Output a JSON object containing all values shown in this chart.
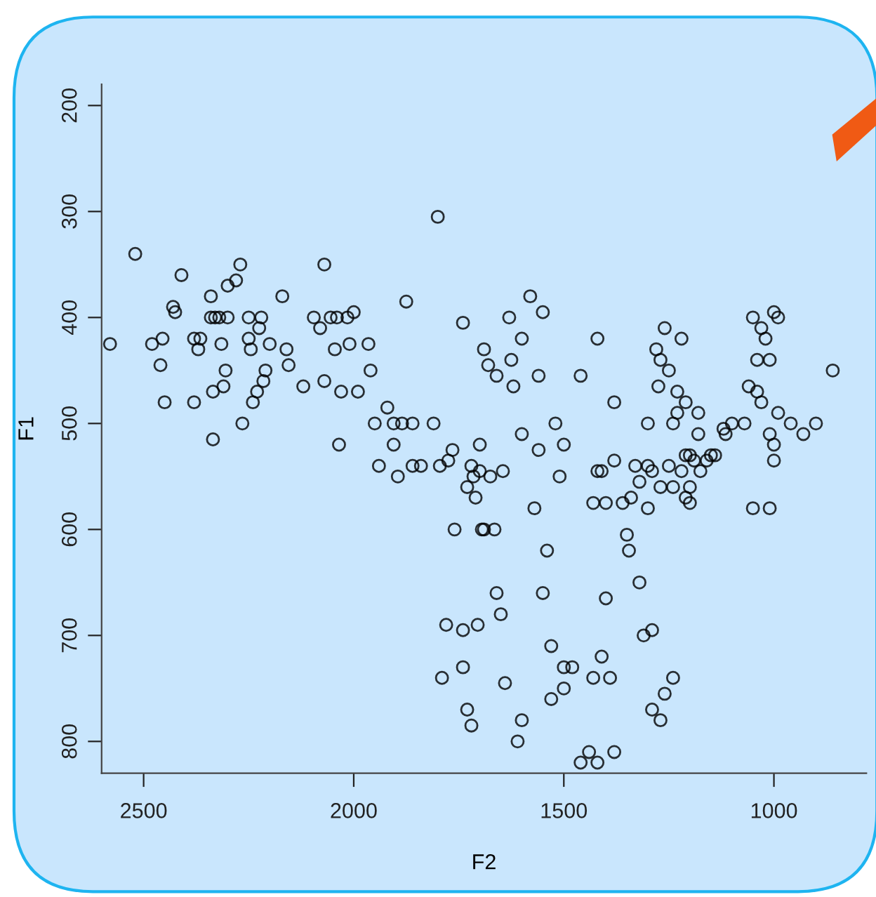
{
  "chart_data": {
    "type": "scatter",
    "xlabel": "F2",
    "ylabel": "F1",
    "xlim": [
      2600,
      780
    ],
    "ylim": [
      830,
      180
    ],
    "xticks": [
      2500,
      2000,
      1500,
      1000
    ],
    "yticks": [
      200,
      300,
      400,
      500,
      600,
      700,
      800
    ],
    "grid": false,
    "marker": "circle",
    "color": "#000000",
    "x": [
      2580,
      2520,
      2480,
      2460,
      2455,
      2450,
      2430,
      2425,
      2410,
      2380,
      2380,
      2370,
      2365,
      2340,
      2340,
      2335,
      2330,
      2335,
      2320,
      2315,
      2310,
      2300,
      2300,
      2305,
      2280,
      2270,
      2265,
      2250,
      2250,
      2245,
      2240,
      2230,
      2220,
      2225,
      2215,
      2210,
      2200,
      2170,
      2160,
      2155,
      2120,
      2095,
      2080,
      2070,
      2070,
      2055,
      2045,
      2040,
      2030,
      2035,
      2015,
      2010,
      2000,
      1990,
      1965,
      1960,
      1950,
      1940,
      1920,
      1905,
      1905,
      1895,
      1885,
      1875,
      1860,
      1840,
      1810,
      1800,
      1795,
      1790,
      1775,
      1760,
      1765,
      1740,
      1730,
      1720,
      1715,
      1710,
      1705,
      1700,
      1695,
      1690,
      1680,
      1675,
      1665,
      1660,
      1660,
      1650,
      1645,
      1640,
      1630,
      1625,
      1620,
      1740,
      1730,
      1720,
      1600,
      1610,
      1600,
      1580,
      1560,
      1550,
      1600,
      1560,
      1570,
      1540,
      1510,
      1520,
      1500,
      1550,
      1530,
      1500,
      1500,
      1460,
      1420,
      1420,
      1410,
      1400,
      1380,
      1360,
      1430,
      1410,
      1400,
      1390,
      1380,
      1350,
      1345,
      1330,
      1320,
      1300,
      1310,
      1290,
      1280,
      1275,
      1270,
      1260,
      1250,
      1230,
      1220,
      1300,
      1290,
      1270,
      1260,
      1240,
      1440,
      1460,
      1420,
      1380,
      1320,
      1300,
      1290,
      1270,
      1250,
      1240,
      1220,
      1210,
      1200,
      1240,
      1230,
      1210,
      1180,
      1175,
      1160,
      1150,
      1120,
      1115,
      1210,
      1200,
      1050,
      1040,
      1030,
      1020,
      1000,
      990,
      1010,
      1040,
      1060,
      1070,
      1030,
      990,
      1010,
      1000,
      1000,
      1050,
      1010,
      960,
      930,
      900,
      860,
      1100,
      1140,
      1180,
      1200,
      1190,
      1430,
      1340,
      1480,
      1530,
      1690,
      1700,
      1780,
      1860,
      1740
    ],
    "values": [
      425,
      340,
      425,
      445,
      420,
      480,
      390,
      395,
      360,
      420,
      480,
      430,
      420,
      380,
      400,
      470,
      400,
      515,
      400,
      425,
      465,
      400,
      370,
      450,
      365,
      350,
      500,
      400,
      420,
      430,
      480,
      470,
      400,
      410,
      460,
      450,
      425,
      380,
      430,
      445,
      465,
      400,
      410,
      350,
      460,
      400,
      430,
      400,
      470,
      520,
      400,
      425,
      395,
      470,
      425,
      450,
      500,
      540,
      485,
      500,
      520,
      550,
      500,
      385,
      500,
      540,
      500,
      305,
      540,
      740,
      535,
      600,
      525,
      405,
      560,
      540,
      550,
      570,
      690,
      545,
      600,
      430,
      445,
      550,
      600,
      455,
      660,
      680,
      545,
      745,
      400,
      440,
      465,
      695,
      770,
      785,
      780,
      800,
      420,
      380,
      455,
      395,
      510,
      525,
      580,
      620,
      550,
      500,
      520,
      660,
      710,
      750,
      730,
      455,
      420,
      545,
      545,
      575,
      535,
      575,
      740,
      720,
      665,
      740,
      480,
      605,
      620,
      540,
      650,
      580,
      700,
      695,
      430,
      465,
      440,
      410,
      450,
      470,
      420,
      500,
      770,
      780,
      755,
      740,
      810,
      820,
      820,
      810,
      555,
      540,
      545,
      560,
      540,
      560,
      545,
      570,
      575,
      500,
      490,
      480,
      490,
      545,
      535,
      530,
      505,
      510,
      530,
      530,
      400,
      440,
      410,
      420,
      395,
      400,
      440,
      470,
      465,
      500,
      480,
      490,
      510,
      520,
      535,
      580,
      580,
      500,
      510,
      500,
      450,
      500,
      530,
      510,
      560,
      535,
      575,
      570,
      730,
      760,
      600,
      520,
      690,
      540,
      730
    ]
  }
}
